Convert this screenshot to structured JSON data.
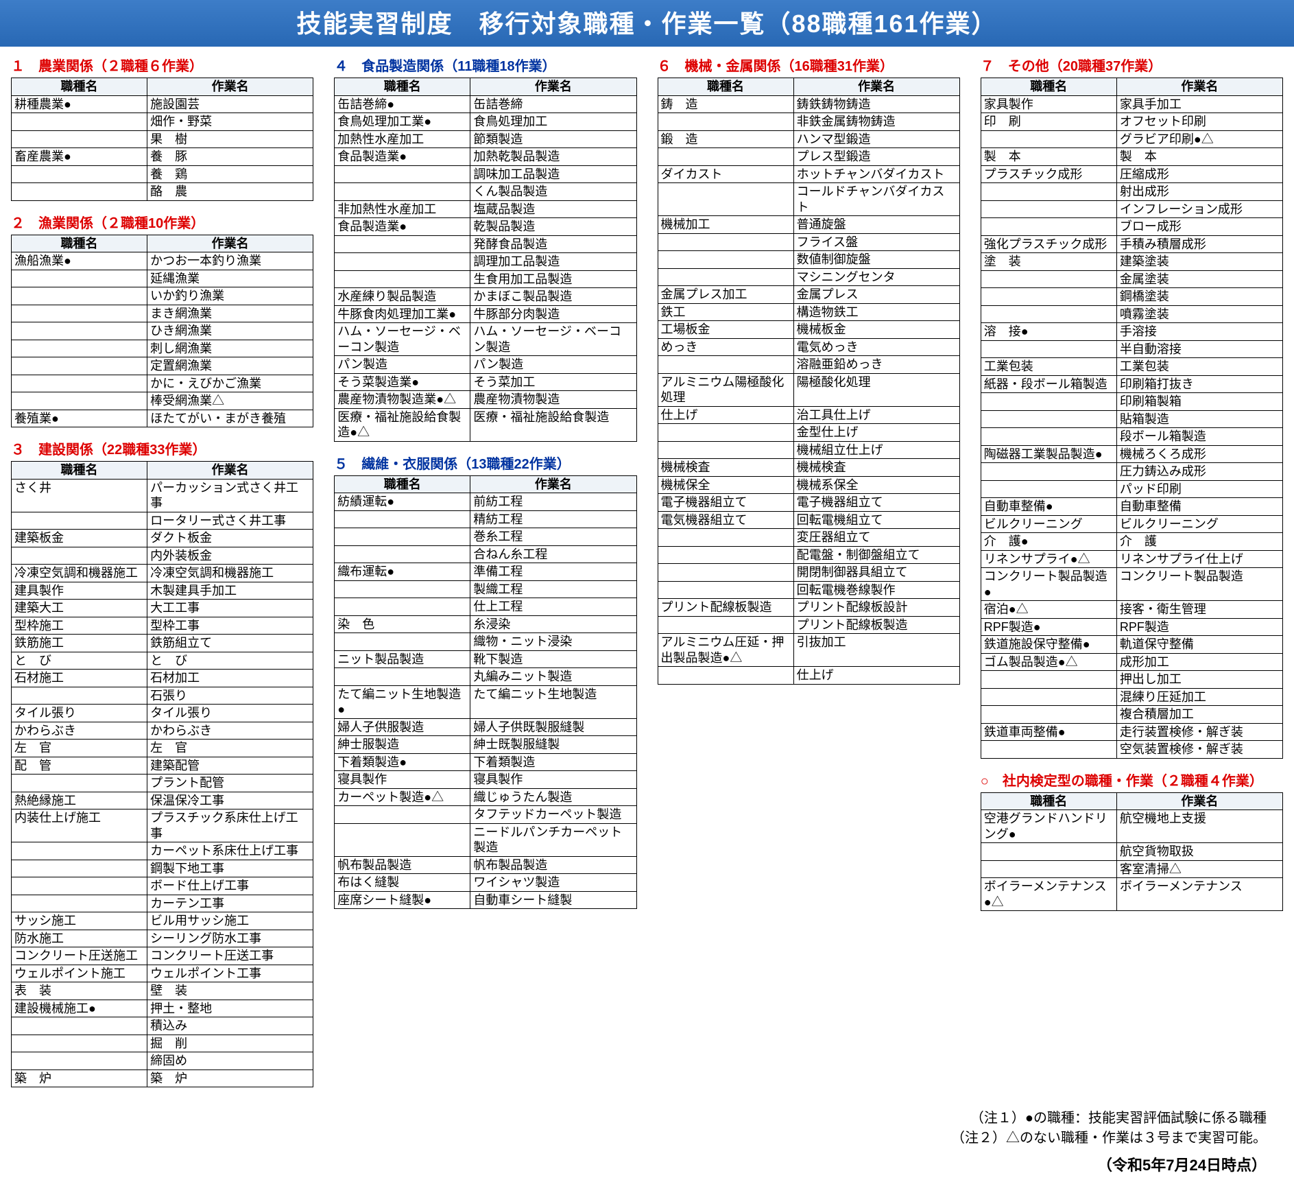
{
  "banner": "技能実習制度　移行対象職種・作業一覧（88職種161作業）",
  "headers": {
    "job": "職種名",
    "work": "作業名"
  },
  "notes": [
    "（注１）●の職種：技能実習評価試験に係る職種",
    "（注２）△のない職種・作業は３号まで実習可能。"
  ],
  "dateline": "（令和5年7月24日時点）",
  "sections": [
    {
      "id": 1,
      "title": "１　農業関係（２職種６作業）",
      "color": "red",
      "rows": [
        [
          "耕種農業●",
          "施設園芸"
        ],
        [
          "",
          "畑作・野菜"
        ],
        [
          "",
          "果　樹"
        ],
        [
          "畜産農業●",
          "養　豚"
        ],
        [
          "",
          "養　鶏"
        ],
        [
          "",
          "酪　農"
        ]
      ]
    },
    {
      "id": 2,
      "title": "２　漁業関係（２職種10作業）",
      "color": "red",
      "rows": [
        [
          "漁船漁業●",
          "かつお一本釣り漁業"
        ],
        [
          "",
          "延縄漁業"
        ],
        [
          "",
          "いか釣り漁業"
        ],
        [
          "",
          "まき網漁業"
        ],
        [
          "",
          "ひき網漁業"
        ],
        [
          "",
          "刺し網漁業"
        ],
        [
          "",
          "定置網漁業"
        ],
        [
          "",
          "かに・えびかご漁業"
        ],
        [
          "",
          "棒受網漁業△"
        ],
        [
          "養殖業●",
          "ほたてがい・まがき養殖"
        ]
      ]
    },
    {
      "id": 3,
      "title": "３　建設関係（22職種33作業）",
      "color": "red",
      "rows": [
        [
          "さく井",
          "パーカッション式さく井工事"
        ],
        [
          "",
          "ロータリー式さく井工事"
        ],
        [
          "建築板金",
          "ダクト板金"
        ],
        [
          "",
          "内外装板金"
        ],
        [
          "冷凍空気調和機器施工",
          "冷凍空気調和機器施工"
        ],
        [
          "建具製作",
          "木製建具手加工"
        ],
        [
          "建築大工",
          "大工工事"
        ],
        [
          "型枠施工",
          "型枠工事"
        ],
        [
          "鉄筋施工",
          "鉄筋組立て"
        ],
        [
          "と　び",
          "と　び"
        ],
        [
          "石材施工",
          "石材加工"
        ],
        [
          "",
          "石張り"
        ],
        [
          "タイル張り",
          "タイル張り"
        ],
        [
          "かわらぶき",
          "かわらぶき"
        ],
        [
          "左　官",
          "左　官"
        ],
        [
          "配　管",
          "建築配管"
        ],
        [
          "",
          "プラント配管"
        ],
        [
          "熱絶縁施工",
          "保温保冷工事"
        ],
        [
          "内装仕上げ施工",
          "プラスチック系床仕上げ工事"
        ],
        [
          "",
          "カーペット系床仕上げ工事"
        ],
        [
          "",
          "鋼製下地工事"
        ],
        [
          "",
          "ボード仕上げ工事"
        ],
        [
          "",
          "カーテン工事"
        ],
        [
          "サッシ施工",
          "ビル用サッシ施工"
        ],
        [
          "防水施工",
          "シーリング防水工事"
        ],
        [
          "コンクリート圧送施工",
          "コンクリート圧送工事"
        ],
        [
          "ウェルポイント施工",
          "ウェルポイント工事"
        ],
        [
          "表　装",
          "壁　装"
        ],
        [
          "建設機械施工●",
          "押土・整地"
        ],
        [
          "",
          "積込み"
        ],
        [
          "",
          "掘　削"
        ],
        [
          "",
          "締固め"
        ],
        [
          "築　炉",
          "築　炉"
        ]
      ]
    },
    {
      "id": 4,
      "title": "４　食品製造関係（11職種18作業）",
      "color": "blue",
      "rows": [
        [
          "缶詰巻締●",
          "缶詰巻締"
        ],
        [
          "食鳥処理加工業●",
          "食鳥処理加工"
        ],
        [
          "加熱性水産加工",
          "節類製造"
        ],
        [
          "食品製造業●",
          "加熱乾製品製造"
        ],
        [
          "",
          "調味加工品製造"
        ],
        [
          "",
          "くん製品製造"
        ],
        [
          "非加熱性水産加工",
          "塩蔵品製造"
        ],
        [
          "食品製造業●",
          "乾製品製造"
        ],
        [
          "",
          "発酵食品製造"
        ],
        [
          "",
          "調理加工品製造"
        ],
        [
          "",
          "生食用加工品製造"
        ],
        [
          "水産練り製品製造",
          "かまぼこ製品製造"
        ],
        [
          "牛豚食肉処理加工業●",
          "牛豚部分肉製造"
        ],
        [
          "ハム・ソーセージ・ベーコン製造",
          "ハム・ソーセージ・ベーコン製造"
        ],
        [
          "パン製造",
          "パン製造"
        ],
        [
          "そう菜製造業●",
          "そう菜加工"
        ],
        [
          "農産物漬物製造業●△",
          "農産物漬物製造"
        ],
        [
          "医療・福祉施設給食製造●△",
          "医療・福祉施設給食製造"
        ]
      ]
    },
    {
      "id": 5,
      "title": "５　繊維・衣服関係（13職種22作業）",
      "color": "blue",
      "rows": [
        [
          "紡績運転●",
          "前紡工程"
        ],
        [
          "",
          "精紡工程"
        ],
        [
          "",
          "巻糸工程"
        ],
        [
          "",
          "合ねん糸工程"
        ],
        [
          "織布運転●",
          "準備工程"
        ],
        [
          "",
          "製織工程"
        ],
        [
          "",
          "仕上工程"
        ],
        [
          "染　色",
          "糸浸染"
        ],
        [
          "",
          "織物・ニット浸染"
        ],
        [
          "ニット製品製造",
          "靴下製造"
        ],
        [
          "",
          "丸編みニット製造"
        ],
        [
          "たて編ニット生地製造●",
          "たて編ニット生地製造"
        ],
        [
          "婦人子供服製造",
          "婦人子供既製服縫製"
        ],
        [
          "紳士服製造",
          "紳士既製服縫製"
        ],
        [
          "下着類製造●",
          "下着類製造"
        ],
        [
          "寝具製作",
          "寝具製作"
        ],
        [
          "カーペット製造●△",
          "織じゅうたん製造"
        ],
        [
          "",
          "タフテッドカーペット製造"
        ],
        [
          "",
          "ニードルパンチカーペット製造"
        ],
        [
          "帆布製品製造",
          "帆布製品製造"
        ],
        [
          "布はく縫製",
          "ワイシャツ製造"
        ],
        [
          "座席シート縫製●",
          "自動車シート縫製"
        ]
      ]
    },
    {
      "id": 6,
      "title": "６　機械・金属関係（16職種31作業）",
      "color": "red",
      "rows": [
        [
          "鋳　造",
          "鋳鉄鋳物鋳造"
        ],
        [
          "",
          "非鉄金属鋳物鋳造"
        ],
        [
          "鍛　造",
          "ハンマ型鍛造"
        ],
        [
          "",
          "プレス型鍛造"
        ],
        [
          "ダイカスト",
          "ホットチャンバダイカスト"
        ],
        [
          "",
          "コールドチャンバダイカスト"
        ],
        [
          "機械加工",
          "普通旋盤"
        ],
        [
          "",
          "フライス盤"
        ],
        [
          "",
          "数値制御旋盤"
        ],
        [
          "",
          "マシニングセンタ"
        ],
        [
          "金属プレス加工",
          "金属プレス"
        ],
        [
          "鉄工",
          "構造物鉄工"
        ],
        [
          "工場板金",
          "機械板金"
        ],
        [
          "めっき",
          "電気めっき"
        ],
        [
          "",
          "溶融亜鉛めっき"
        ],
        [
          "アルミニウム陽極酸化処理",
          "陽極酸化処理"
        ],
        [
          "仕上げ",
          "治工具仕上げ"
        ],
        [
          "",
          "金型仕上げ"
        ],
        [
          "",
          "機械組立仕上げ"
        ],
        [
          "機械検査",
          "機械検査"
        ],
        [
          "機械保全",
          "機械系保全"
        ],
        [
          "電子機器組立て",
          "電子機器組立て"
        ],
        [
          "電気機器組立て",
          "回転電機組立て"
        ],
        [
          "",
          "変圧器組立て"
        ],
        [
          "",
          "配電盤・制御盤組立て"
        ],
        [
          "",
          "開閉制御器具組立て"
        ],
        [
          "",
          "回転電機巻線製作"
        ],
        [
          "プリント配線板製造",
          "プリント配線板設計"
        ],
        [
          "",
          "プリント配線板製造"
        ],
        [
          "アルミニウム圧延・押出製品製造●△",
          "引抜加工"
        ],
        [
          "",
          "仕上げ"
        ]
      ]
    },
    {
      "id": 7,
      "title": "７　その他（20職種37作業）",
      "color": "red",
      "rows": [
        [
          "家具製作",
          "家具手加工"
        ],
        [
          "印　刷",
          "オフセット印刷"
        ],
        [
          "",
          "グラビア印刷●△"
        ],
        [
          "製　本",
          "製　本"
        ],
        [
          "プラスチック成形",
          "圧縮成形"
        ],
        [
          "",
          "射出成形"
        ],
        [
          "",
          "インフレーション成形"
        ],
        [
          "",
          "ブロー成形"
        ],
        [
          "強化プラスチック成形",
          "手積み積層成形"
        ],
        [
          "塗　装",
          "建築塗装"
        ],
        [
          "",
          "金属塗装"
        ],
        [
          "",
          "鋼橋塗装"
        ],
        [
          "",
          "噴霧塗装"
        ],
        [
          "溶　接●",
          "手溶接"
        ],
        [
          "",
          "半自動溶接"
        ],
        [
          "工業包装",
          "工業包装"
        ],
        [
          "紙器・段ボール箱製造",
          "印刷箱打抜き"
        ],
        [
          "",
          "印刷箱製箱"
        ],
        [
          "",
          "貼箱製造"
        ],
        [
          "",
          "段ボール箱製造"
        ],
        [
          "陶磁器工業製品製造●",
          "機械ろくろ成形"
        ],
        [
          "",
          "圧力鋳込み成形"
        ],
        [
          "",
          "パッド印刷"
        ],
        [
          "自動車整備●",
          "自動車整備"
        ],
        [
          "ビルクリーニング",
          "ビルクリーニング"
        ],
        [
          "介　護●",
          "介　護"
        ],
        [
          "リネンサプライ●△",
          "リネンサプライ仕上げ"
        ],
        [
          "コンクリート製品製造●",
          "コンクリート製品製造"
        ],
        [
          "宿泊●△",
          "接客・衛生管理"
        ],
        [
          "RPF製造●",
          "RPF製造"
        ],
        [
          "鉄道施設保守整備●",
          "軌道保守整備"
        ],
        [
          "ゴム製品製造●△",
          "成形加工"
        ],
        [
          "",
          "押出し加工"
        ],
        [
          "",
          "混練り圧延加工"
        ],
        [
          "",
          "複合積層加工"
        ],
        [
          "鉄道車両整備●",
          "走行装置検修・解ぎ装"
        ],
        [
          "",
          "空気装置検修・解ぎ装"
        ]
      ]
    },
    {
      "id": 8,
      "title": "○　社内検定型の職種・作業（２職種４作業）",
      "color": "red",
      "rows": [
        [
          "空港グランドハンドリング●",
          "航空機地上支援"
        ],
        [
          "",
          "航空貨物取扱"
        ],
        [
          "",
          "客室清掃△"
        ],
        [
          "ボイラーメンテナンス●△",
          "ボイラーメンテナンス"
        ]
      ]
    }
  ]
}
